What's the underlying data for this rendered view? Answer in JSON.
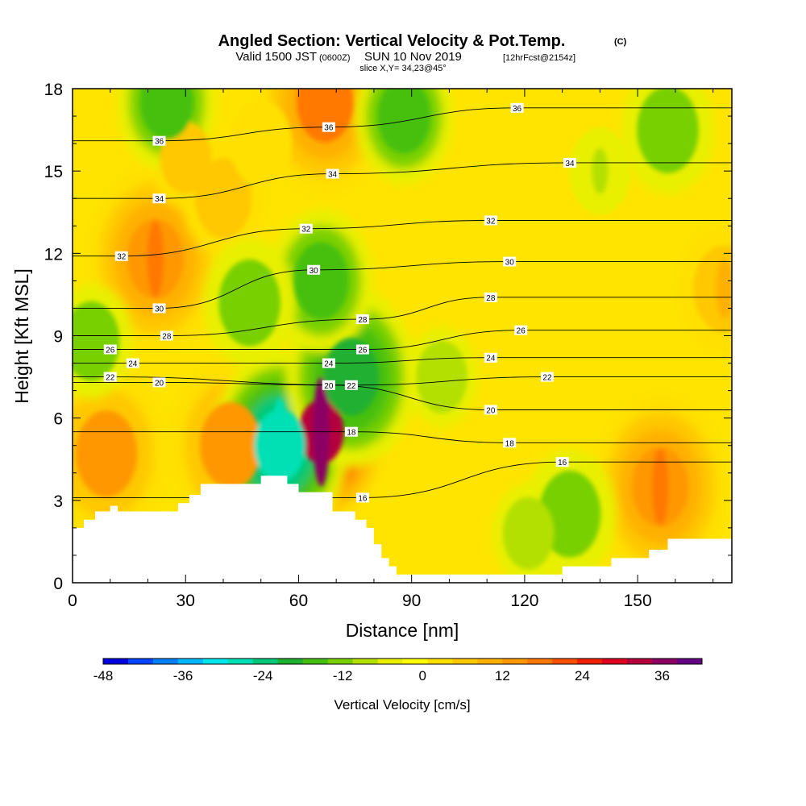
{
  "title": {
    "main": "Angled Section: Vertical Velocity & Pot.Temp.",
    "mark": "(C)",
    "valid_prefix": "Valid 1500 JST",
    "valid_zulu": "(0600Z)",
    "valid_date": "SUN 10 Nov 2019",
    "fcst": "[12hrFcst@2154z]",
    "slice": "slice X,Y= 34,23@45°"
  },
  "chart_data": {
    "type": "heatmap",
    "xlabel": "Distance [nm]",
    "ylabel": "Height [Kft MSL]",
    "xlim": [
      0,
      175
    ],
    "ylim": [
      0,
      18
    ],
    "x_ticks": [
      0,
      30,
      60,
      90,
      120,
      150
    ],
    "x_tick_labels": [
      "0",
      "30",
      "60",
      "90",
      "120",
      "150"
    ],
    "y_ticks": [
      0,
      3,
      6,
      9,
      12,
      15,
      18
    ],
    "y_tick_labels": [
      "0",
      "3",
      "6",
      "9",
      "12",
      "15",
      "18"
    ],
    "grid": false,
    "colorbar": {
      "title": "Vertical Velocity [cm/s]",
      "min": -48,
      "max": 42,
      "step": 4,
      "tick_values": [
        -48,
        -36,
        -24,
        -12,
        0,
        12,
        24,
        36
      ],
      "tick_labels": [
        "-48",
        "-36",
        "-24",
        "-12",
        "0",
        "12",
        "24",
        "36"
      ],
      "colors": [
        "#0000e0",
        "#0044ff",
        "#0080ff",
        "#00b8ff",
        "#00e6ea",
        "#00e0b4",
        "#00c878",
        "#20b030",
        "#46c010",
        "#78d000",
        "#b4e000",
        "#e8f000",
        "#ffff00",
        "#ffe000",
        "#ffc800",
        "#ffb000",
        "#ff9800",
        "#ff7800",
        "#ff5000",
        "#f02000",
        "#e00020",
        "#b4003c",
        "#8c0064",
        "#640082"
      ]
    },
    "terrain": [
      [
        0,
        2
      ],
      [
        3,
        2
      ],
      [
        3,
        2.3
      ],
      [
        6,
        2.3
      ],
      [
        6,
        2.6
      ],
      [
        10,
        2.6
      ],
      [
        10,
        2.8
      ],
      [
        12,
        2.8
      ],
      [
        12,
        2.6
      ],
      [
        28,
        2.6
      ],
      [
        28,
        2.9
      ],
      [
        31,
        2.9
      ],
      [
        31,
        3.2
      ],
      [
        34,
        3.2
      ],
      [
        34,
        3.6
      ],
      [
        50,
        3.6
      ],
      [
        50,
        3.9
      ],
      [
        57,
        3.9
      ],
      [
        57,
        3.6
      ],
      [
        60,
        3.6
      ],
      [
        60,
        3.3
      ],
      [
        69,
        3.3
      ],
      [
        69,
        2.6
      ],
      [
        75,
        2.6
      ],
      [
        75,
        2.3
      ],
      [
        78,
        2.3
      ],
      [
        78,
        2
      ],
      [
        80,
        2
      ],
      [
        80,
        1.4
      ],
      [
        82,
        1.4
      ],
      [
        82,
        0.9
      ],
      [
        84,
        0.9
      ],
      [
        84,
        0.6
      ],
      [
        86,
        0.6
      ],
      [
        86,
        0.3
      ],
      [
        130,
        0.3
      ],
      [
        130,
        0.6
      ],
      [
        143,
        0.6
      ],
      [
        143,
        0.9
      ],
      [
        153,
        0.9
      ],
      [
        153,
        1.2
      ],
      [
        158,
        1.2
      ],
      [
        158,
        1.6
      ],
      [
        175,
        1.6
      ]
    ],
    "updraft_cells": [
      {
        "x": 66,
        "z": 5.5,
        "w": 41
      },
      {
        "x": 67,
        "z": 17.5,
        "w": 22
      },
      {
        "x": 22,
        "z": 11.8,
        "w": 20
      },
      {
        "x": 9,
        "z": 4.7,
        "w": 18
      },
      {
        "x": 42,
        "z": 5.0,
        "w": 18
      },
      {
        "x": 156,
        "z": 3.5,
        "w": 20
      },
      {
        "x": 173,
        "z": 10.7,
        "w": 12
      },
      {
        "x": 30,
        "z": 15.5,
        "w": 8
      },
      {
        "x": 40,
        "z": 14.0,
        "w": 10
      },
      {
        "x": 50,
        "z": 16.0,
        "w": 6
      }
    ],
    "downdraft_cells": [
      {
        "x": 55,
        "z": 5.0,
        "w": -28
      },
      {
        "x": 74,
        "z": 7.5,
        "w": -19
      },
      {
        "x": 66,
        "z": 11.0,
        "w": -14
      },
      {
        "x": 25,
        "z": 17.5,
        "w": -13
      },
      {
        "x": 88,
        "z": 17.0,
        "w": -13
      },
      {
        "x": 158,
        "z": 16.5,
        "w": -12
      },
      {
        "x": 5,
        "z": 8.8,
        "w": -10
      },
      {
        "x": 47,
        "z": 10.2,
        "w": -12
      },
      {
        "x": 132,
        "z": 2.5,
        "w": -12
      },
      {
        "x": 98,
        "z": 7.5,
        "w": -8
      },
      {
        "x": 121,
        "z": 1.8,
        "w": -8
      },
      {
        "x": 140,
        "z": 15.0,
        "w": -6
      }
    ],
    "isentropes": {
      "levels": [
        16,
        18,
        20,
        22,
        24,
        26,
        28,
        30,
        32,
        34,
        36
      ],
      "labels": [
        {
          "text": "36",
          "x": 23,
          "z": 16.1
        },
        {
          "text": "36",
          "x": 68,
          "z": 16.6
        },
        {
          "text": "36",
          "x": 118,
          "z": 17.3
        },
        {
          "text": "34",
          "x": 23,
          "z": 14.0
        },
        {
          "text": "34",
          "x": 69,
          "z": 14.9
        },
        {
          "text": "34",
          "x": 132,
          "z": 15.3
        },
        {
          "text": "32",
          "x": 13,
          "z": 11.9
        },
        {
          "text": "32",
          "x": 62,
          "z": 12.9
        },
        {
          "text": "32",
          "x": 111,
          "z": 13.2
        },
        {
          "text": "30",
          "x": 23,
          "z": 10.0
        },
        {
          "text": "30",
          "x": 64,
          "z": 11.4
        },
        {
          "text": "30",
          "x": 116,
          "z": 11.7
        },
        {
          "text": "28",
          "x": 25,
          "z": 9.0
        },
        {
          "text": "28",
          "x": 77,
          "z": 9.6
        },
        {
          "text": "28",
          "x": 111,
          "z": 10.4
        },
        {
          "text": "26",
          "x": 10,
          "z": 8.5
        },
        {
          "text": "26",
          "x": 77,
          "z": 8.5
        },
        {
          "text": "26",
          "x": 119,
          "z": 9.2
        },
        {
          "text": "24",
          "x": 16,
          "z": 8.0
        },
        {
          "text": "24",
          "x": 68,
          "z": 8.0
        },
        {
          "text": "24",
          "x": 111,
          "z": 8.2
        },
        {
          "text": "22",
          "x": 10,
          "z": 7.5
        },
        {
          "text": "22",
          "x": 74,
          "z": 7.2
        },
        {
          "text": "22",
          "x": 126,
          "z": 7.5
        },
        {
          "text": "20",
          "x": 23,
          "z": 7.3
        },
        {
          "text": "20",
          "x": 68,
          "z": 7.2
        },
        {
          "text": "20",
          "x": 111,
          "z": 6.3
        },
        {
          "text": "18",
          "x": 74,
          "z": 5.5
        },
        {
          "text": "18",
          "x": 116,
          "z": 5.1
        },
        {
          "text": "16",
          "x": 77,
          "z": 3.1
        },
        {
          "text": "16",
          "x": 130,
          "z": 4.4
        }
      ]
    }
  }
}
